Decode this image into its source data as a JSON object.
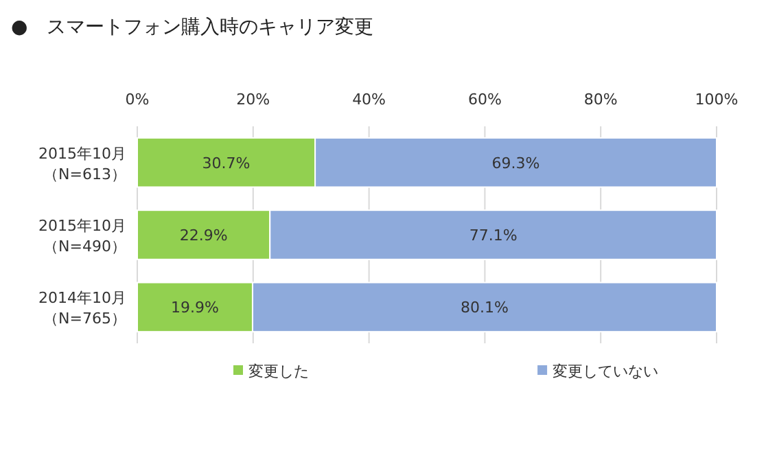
{
  "chart_data": {
    "type": "bar",
    "orientation": "horizontal",
    "stacked": true,
    "title": "●　スマートフォン購入時のキャリア変更",
    "categories": [
      "2015年10月（N=613）",
      "2015年10月（N=490）",
      "2014年10月（N=765）"
    ],
    "series": [
      {
        "name": "変更した",
        "color": "#92d050",
        "values": [
          30.7,
          22.9,
          19.9
        ],
        "value_labels": [
          "30.7%",
          "22.9%",
          "19.9%"
        ]
      },
      {
        "name": "変更していない",
        "color": "#8eaadb",
        "values": [
          69.3,
          77.1,
          80.1
        ],
        "value_labels": [
          "69.3%",
          "77.1%",
          "80.1%"
        ]
      }
    ],
    "xlim": [
      0,
      100
    ],
    "xticks": [
      {
        "value": 0,
        "label": "0%"
      },
      {
        "value": 20,
        "label": "20%"
      },
      {
        "value": 40,
        "label": "40%"
      },
      {
        "value": 60,
        "label": "60%"
      },
      {
        "value": 80,
        "label": "80%"
      },
      {
        "value": 100,
        "label": "100%"
      }
    ],
    "grid": "x",
    "legend": "bottom"
  }
}
